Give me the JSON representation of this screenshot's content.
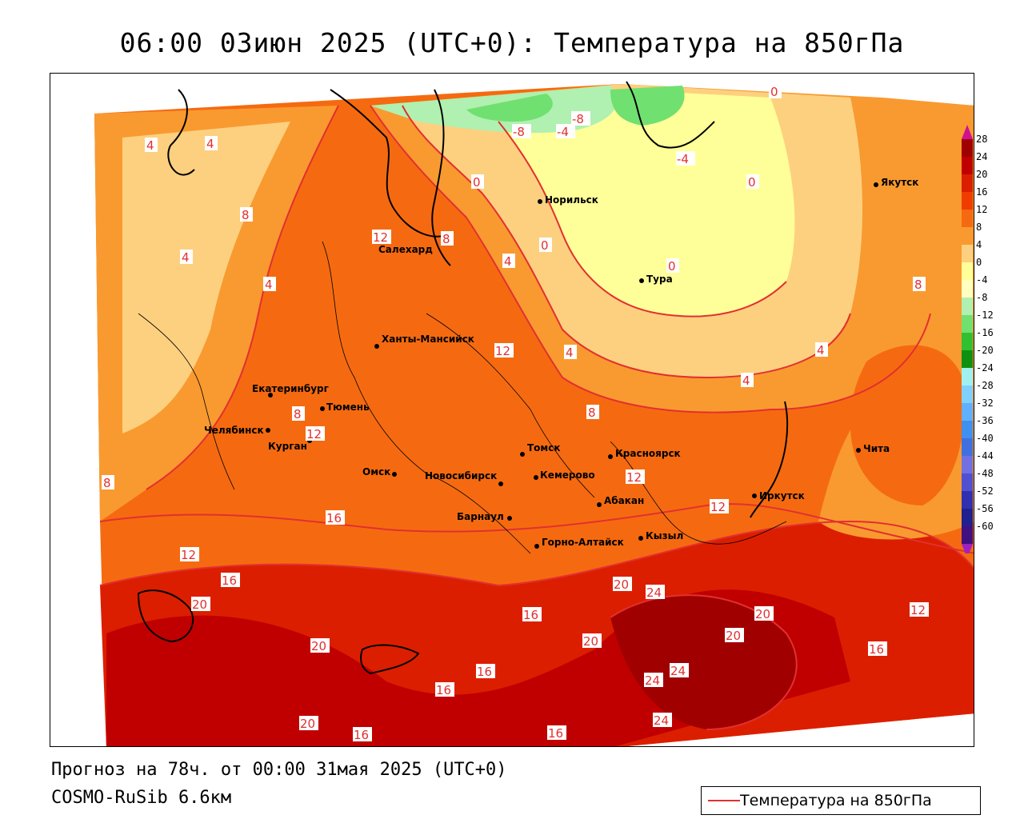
{
  "title": "06:00 03июн 2025 (UTC+0): Температура на 850гПа",
  "footer": {
    "forecast": "Прогноз на 78ч. от 00:00 31мая 2025 (UTC+0)",
    "model": "COSMO-RuSib 6.6км"
  },
  "legend": {
    "label": "Температура на 850гПа",
    "line_color": "#e23030"
  },
  "colorbar": {
    "labels": [
      "28",
      "24",
      "20",
      "16",
      "12",
      "8",
      "4",
      "0",
      "-4",
      "-8",
      "-12",
      "-16",
      "-20",
      "-24",
      "-28",
      "-32",
      "-36",
      "-40",
      "-44",
      "-48",
      "-52",
      "-56",
      "-60"
    ],
    "colors": [
      "#a00000",
      "#c00000",
      "#dc1e00",
      "#f03c00",
      "#f56a10",
      "#f99a30",
      "#fdd080",
      "#ffff99",
      "#ffffc0",
      "#b0f0b0",
      "#70e070",
      "#30c030",
      "#109010",
      "#a0f0f0",
      "#80d0ff",
      "#60b0ff",
      "#4090f0",
      "#4070e0",
      "#7070e0",
      "#5050d0",
      "#3030b0",
      "#202090",
      "#401080"
    ]
  },
  "cities": [
    {
      "name": "Якутск"
    },
    {
      "name": "Норильск"
    },
    {
      "name": "Салехард"
    },
    {
      "name": "Тура"
    },
    {
      "name": "Ханты-Мансийск"
    },
    {
      "name": "Екатеринбург"
    },
    {
      "name": "Тюмень"
    },
    {
      "name": "Челябинск"
    },
    {
      "name": "Курган"
    },
    {
      "name": "Томск"
    },
    {
      "name": "Красноярск"
    },
    {
      "name": "Омск"
    },
    {
      "name": "Новосибирск"
    },
    {
      "name": "Кемерово"
    },
    {
      "name": "Абакан"
    },
    {
      "name": "Иркутск"
    },
    {
      "name": "Чита"
    },
    {
      "name": "Барнаул"
    },
    {
      "name": "Горно-Алтайск"
    },
    {
      "name": "Кызыл"
    }
  ],
  "isotherm_labels": [
    "0",
    "-8",
    "-4",
    "-8",
    "-4",
    "4",
    "4",
    "0",
    "0",
    "0",
    "0",
    "8",
    "12",
    "8",
    "4",
    "4",
    "4",
    "12",
    "4",
    "8",
    "4",
    "4",
    "8",
    "8",
    "12",
    "12",
    "12",
    "8",
    "16",
    "12",
    "16",
    "16",
    "20",
    "20",
    "16",
    "24",
    "20",
    "20",
    "20",
    "12",
    "16",
    "16",
    "20",
    "24",
    "24",
    "16",
    "20",
    "16",
    "24",
    "16"
  ]
}
